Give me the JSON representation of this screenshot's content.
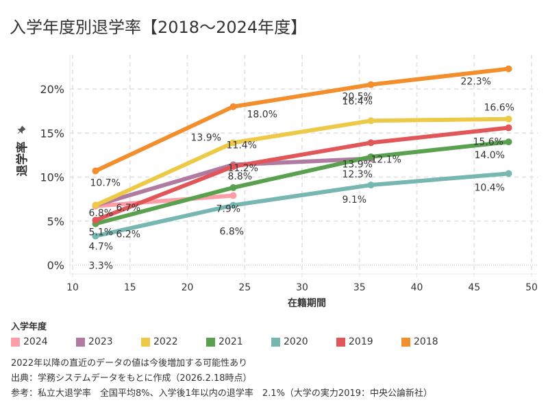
{
  "title": "入学年度別退学率【2018～2024年度】",
  "chart_data": {
    "type": "line",
    "title": "入学年度別退学率【2018～2024年度】",
    "xlabel": "在籍期間",
    "ylabel": "退学率",
    "xlim": [
      9,
      51
    ],
    "ylim": [
      -1,
      23
    ],
    "x_ticks": [
      10,
      15,
      20,
      25,
      30,
      35,
      40,
      45,
      50
    ],
    "y_ticks": [
      0,
      5,
      10,
      15,
      20
    ],
    "y_tick_labels": [
      "0%",
      "5%",
      "10%",
      "15%",
      "20%"
    ],
    "grid": true,
    "legend_title": "入学年度",
    "legend_position": "bottom",
    "series": [
      {
        "name": "2024",
        "color": "#FF9DA7",
        "x": [
          12,
          24
        ],
        "y": [
          6.7,
          7.9
        ],
        "labels": [
          "6.7%",
          "7.9%"
        ]
      },
      {
        "name": "2023",
        "color": "#B07AA1",
        "x": [
          12,
          24,
          36
        ],
        "y": [
          6.8,
          11.4,
          12.1
        ],
        "labels": [
          "6.8%",
          "11.4%",
          "12.1%"
        ]
      },
      {
        "name": "2022",
        "color": "#EDC948",
        "x": [
          12,
          24,
          36,
          48
        ],
        "y": [
          6.8,
          13.9,
          16.4,
          16.6
        ],
        "labels": [
          "",
          "13.9%",
          "16.4%",
          "16.6%"
        ]
      },
      {
        "name": "2021",
        "color": "#59A14F",
        "x": [
          12,
          24,
          36,
          48
        ],
        "y": [
          4.7,
          8.8,
          12.3,
          14.0
        ],
        "labels": [
          "4.7%",
          "8.8%",
          "12.3%",
          "14.0%"
        ]
      },
      {
        "name": "2020",
        "color": "#76B7B2",
        "x": [
          12,
          24,
          36,
          48
        ],
        "y": [
          3.3,
          6.8,
          9.1,
          10.4
        ],
        "labels": [
          "3.3%",
          "6.8%",
          "9.1%",
          "10.4%"
        ]
      },
      {
        "name": "2019",
        "color": "#E15759",
        "x": [
          12,
          24,
          36,
          48
        ],
        "y": [
          5.1,
          11.2,
          13.9,
          15.6
        ],
        "labels": [
          "5.1%",
          "11.2%",
          "13.9%",
          "15.6%"
        ]
      },
      {
        "name": "2018",
        "color": "#F28E2B",
        "x": [
          12,
          24,
          36,
          48
        ],
        "y": [
          10.7,
          18.0,
          20.5,
          22.3
        ],
        "labels": [
          "10.7%",
          "18.0%",
          "20.5%",
          "22.3%"
        ]
      }
    ],
    "extra_labels": [
      {
        "text": "6.2%",
        "note": "2024/2021 start area"
      }
    ]
  },
  "legend": {
    "title": "入学年度",
    "items": [
      {
        "label": "2024",
        "color": "#FF9DA7"
      },
      {
        "label": "2023",
        "color": "#B07AA1"
      },
      {
        "label": "2022",
        "color": "#EDC948"
      },
      {
        "label": "2021",
        "color": "#59A14F"
      },
      {
        "label": "2020",
        "color": "#76B7B2"
      },
      {
        "label": "2019",
        "color": "#E15759"
      },
      {
        "label": "2018",
        "color": "#F28E2B"
      }
    ]
  },
  "notes": [
    "2022年以降の直近のデータの値は今後増加する可能性あり",
    "出典：学務システムデータをもとに作成（2026.2.18時点）",
    "参考：私立大退学率　全国平均8%、入学後1年以内の退学率　2.1%（大学の実力2019：中央公論新社）"
  ],
  "icons": {
    "ylabel_pin": "pin-icon"
  }
}
